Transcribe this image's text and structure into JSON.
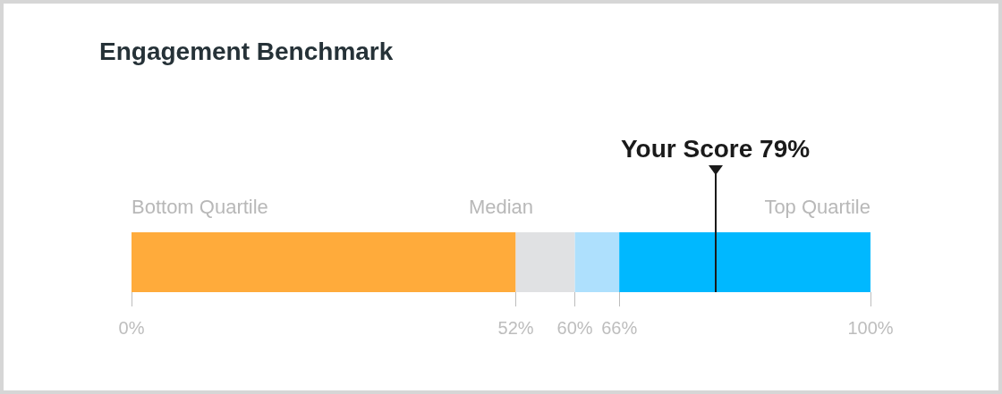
{
  "chart_data": {
    "type": "bar",
    "orientation": "horizontal",
    "stacked": true,
    "title": "Engagement Benchmark",
    "categories": [
      null
    ],
    "series": [
      {
        "color": "#ffab3b",
        "values": [
          52
        ]
      },
      {
        "color": "#e0e1e3",
        "values": [
          8
        ]
      },
      {
        "color": "#aee0fd",
        "values": [
          6
        ]
      },
      {
        "color": "#00b8ff",
        "values": [
          34
        ]
      }
    ],
    "xlim": [
      0,
      100
    ],
    "xticks": [
      {
        "value": 0,
        "label": "0%"
      },
      {
        "value": 52,
        "label": "52%"
      },
      {
        "value": 60,
        "label": "60%"
      },
      {
        "value": 66,
        "label": "66%"
      },
      {
        "value": 100,
        "label": "100%"
      }
    ],
    "ref_lines": [
      {
        "axis": "x",
        "value": 79,
        "label": "Your Score 79%",
        "color": "#1a1a1a"
      }
    ],
    "annotations": [
      "Bottom Quartile",
      "Median",
      "Top Quartile"
    ],
    "tick_labels": "x",
    "grid": false
  }
}
